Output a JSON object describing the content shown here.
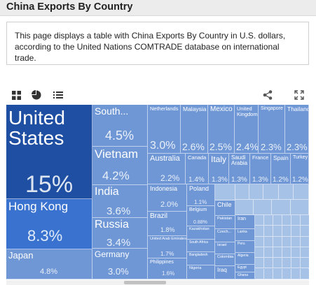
{
  "page": {
    "title": "China Exports By Country",
    "description": "This page displays a table with China Exports By Country in U.S. dollars, according to the United Nations COMTRADE database on international trade."
  },
  "toolbar": {
    "icons": [
      "treemap-view-icon",
      "pie-chart-view-icon",
      "list-view-icon",
      "share-icon",
      "fullscreen-icon"
    ]
  },
  "chart_data": {
    "type": "treemap",
    "title": "",
    "unit": "%",
    "items": [
      {
        "name": "United States",
        "label": "United States",
        "value": 15,
        "value_label": "15%"
      },
      {
        "name": "Hong Kong",
        "label": "Hong Kong",
        "value": 8.3,
        "value_label": "8.3%"
      },
      {
        "name": "Japan",
        "label": "Japan",
        "value": 4.8,
        "value_label": "4.8%"
      },
      {
        "name": "South Korea",
        "label": "South...",
        "value": 4.5,
        "value_label": "4.5%"
      },
      {
        "name": "Vietnam",
        "label": "Vietnam",
        "value": 4.2,
        "value_label": "4.2%"
      },
      {
        "name": "India",
        "label": "India",
        "value": 3.6,
        "value_label": "3.6%"
      },
      {
        "name": "Russia",
        "label": "Russia",
        "value": 3.4,
        "value_label": "3.4%"
      },
      {
        "name": "Germany",
        "label": "Germany",
        "value": 3.0,
        "value_label": "3.0%"
      },
      {
        "name": "Netherlands",
        "label": "Netherlands",
        "value": 3.0,
        "value_label": "3.0%"
      },
      {
        "name": "Malaysia",
        "label": "Malaysia",
        "value": 2.6,
        "value_label": "2.6%"
      },
      {
        "name": "Mexico",
        "label": "Mexico",
        "value": 2.5,
        "value_label": "2.5%"
      },
      {
        "name": "United Kingdom",
        "label": "United Kingdom",
        "value": 2.4,
        "value_label": "2.4%"
      },
      {
        "name": "Singapore",
        "label": "Singapore",
        "value": 2.3,
        "value_label": "2.3%"
      },
      {
        "name": "Thailand",
        "label": "Thailand",
        "value": 2.3,
        "value_label": "2.3%"
      },
      {
        "name": "Australia",
        "label": "Australia",
        "value": 2.2,
        "value_label": "2.2%"
      },
      {
        "name": "Canada",
        "label": "Canada",
        "value": 1.4,
        "value_label": "1.4%"
      },
      {
        "name": "Italy",
        "label": "Italy",
        "value": 1.3,
        "value_label": "1.3%"
      },
      {
        "name": "Saudi Arabia",
        "label": "Saudi Arabia",
        "value": 1.3,
        "value_label": "1.3%"
      },
      {
        "name": "France",
        "label": "France",
        "value": 1.3,
        "value_label": "1.3%"
      },
      {
        "name": "Spain",
        "label": "Spain",
        "value": 1.2,
        "value_label": "1.2%"
      },
      {
        "name": "Turkey",
        "label": "Turkey",
        "value": 1.2,
        "value_label": "1.2%"
      },
      {
        "name": "Indonesia",
        "label": "Indonesia",
        "value": 2.0,
        "value_label": "2.0%"
      },
      {
        "name": "Brazil",
        "label": "Brazil",
        "value": 1.8,
        "value_label": "1.8%"
      },
      {
        "name": "United Arab Emirates",
        "label": "United Arab Emirates",
        "value": 1.7,
        "value_label": "1.7%"
      },
      {
        "name": "Philippines",
        "label": "Philippines",
        "value": 1.6,
        "value_label": "1.6%"
      },
      {
        "name": "Poland",
        "label": "Poland",
        "value": 1.1,
        "value_label": "1.1%"
      },
      {
        "name": "Belgium",
        "label": "Belgium",
        "value": 0.88,
        "value_label": "0.88%"
      },
      {
        "name": "Kazakhstan",
        "label": "Kazakhstan",
        "value": null,
        "value_label": ""
      },
      {
        "name": "South Africa",
        "label": "South Africa",
        "value": null,
        "value_label": ""
      },
      {
        "name": "Bangladesh",
        "label": "Bangladesh",
        "value": null,
        "value_label": ""
      },
      {
        "name": "Nigeria",
        "label": "Nigeria",
        "value": null,
        "value_label": ""
      },
      {
        "name": "Chile",
        "label": "Chile",
        "value": null,
        "value_label": ""
      },
      {
        "name": "Pakistan",
        "label": "Pakistan",
        "value": null,
        "value_label": ""
      },
      {
        "name": "Czechia",
        "label": "Czech...",
        "value": null,
        "value_label": ""
      },
      {
        "name": "Israel",
        "label": "Israel",
        "value": null,
        "value_label": ""
      },
      {
        "name": "Colombia",
        "label": "Colombia",
        "value": null,
        "value_label": ""
      },
      {
        "name": "Iraq",
        "label": "Iraq",
        "value": null,
        "value_label": ""
      },
      {
        "name": "Iran",
        "label": "Iran",
        "value": null,
        "value_label": ""
      },
      {
        "name": "Lanka",
        "label": "Lanka",
        "value": null,
        "value_label": ""
      },
      {
        "name": "Peru",
        "label": "Peru",
        "value": null,
        "value_label": ""
      },
      {
        "name": "Algeria",
        "label": "Algeria",
        "value": null,
        "value_label": ""
      },
      {
        "name": "Egypt",
        "label": "Egypt",
        "value": null,
        "value_label": ""
      },
      {
        "name": "Ghana",
        "label": "Ghana",
        "value": null,
        "value_label": ""
      }
    ],
    "colors": {
      "dark": "#1f4fa2",
      "mid": "#3a73cf",
      "light": "#6f97d6",
      "pale": "#8fb2e0"
    }
  }
}
